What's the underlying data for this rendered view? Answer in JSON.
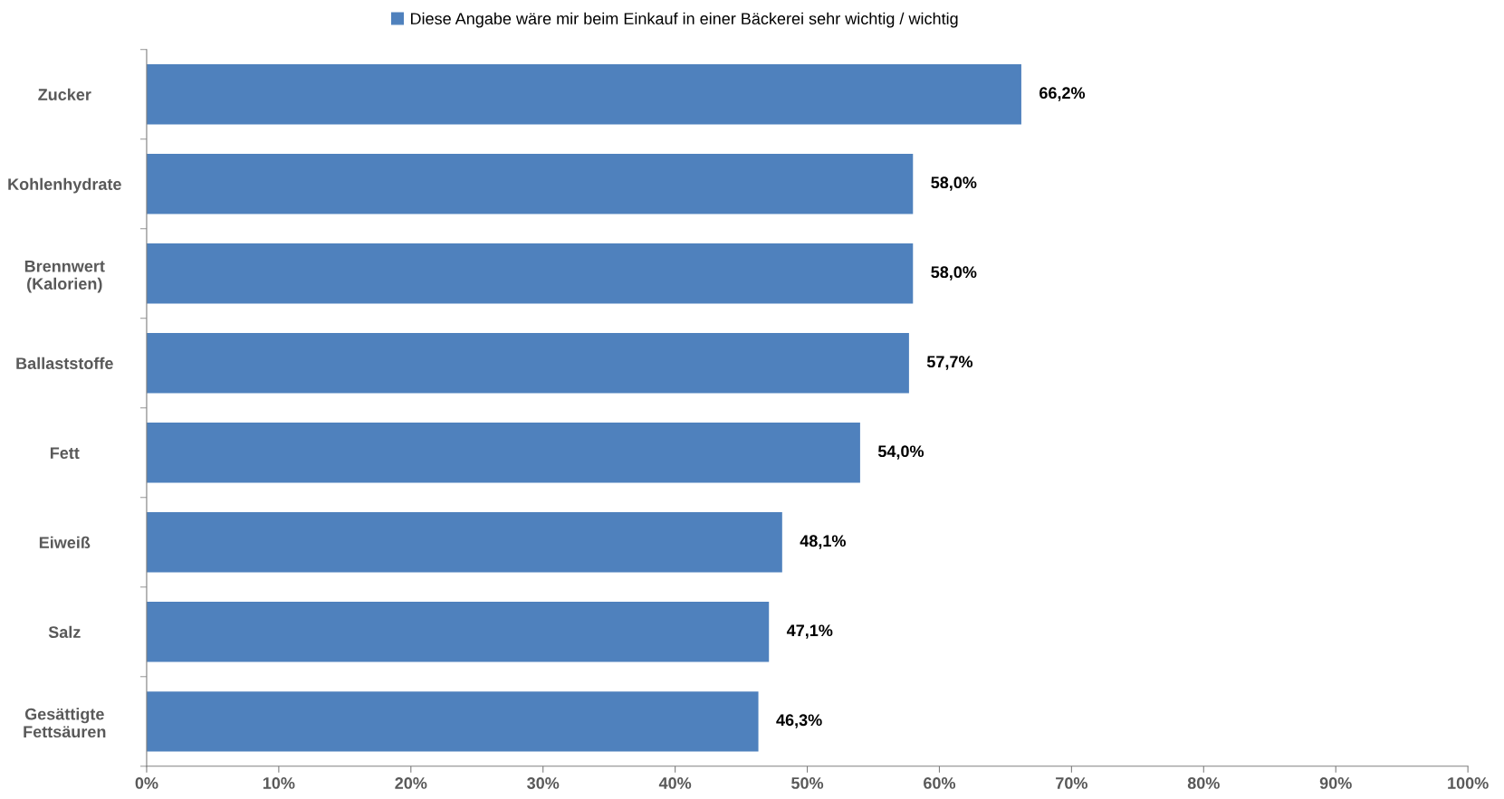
{
  "chart_data": {
    "type": "bar",
    "orientation": "horizontal",
    "categories": [
      "Zucker",
      "Kohlenhydrate",
      "Brennwert\n(Kalorien)",
      "Ballaststoffe",
      "Fett",
      "Eiweiß",
      "Salz",
      "Gesättigte\nFettsäuren"
    ],
    "series": [
      {
        "name": "Diese Angabe wäre mir beim Einkauf in einer Bäckerei sehr wichtig / wichtig",
        "color": "#4f81bd",
        "values": [
          66.2,
          58.0,
          58.0,
          57.7,
          54.0,
          48.1,
          47.1,
          46.3
        ],
        "value_labels": [
          "66,2%",
          "58,0%",
          "58,0%",
          "57,7%",
          "54,0%",
          "48,1%",
          "47,1%",
          "46,3%"
        ]
      }
    ],
    "xlim": [
      0,
      100
    ],
    "xticks": [
      {
        "value": 0,
        "label": "0%"
      },
      {
        "value": 10,
        "label": "10%"
      },
      {
        "value": 20,
        "label": "20%"
      },
      {
        "value": 30,
        "label": "30%"
      },
      {
        "value": 40,
        "label": "40%"
      },
      {
        "value": 50,
        "label": "50%"
      },
      {
        "value": 60,
        "label": "60%"
      },
      {
        "value": 70,
        "label": "70%"
      },
      {
        "value": 80,
        "label": "80%"
      },
      {
        "value": 90,
        "label": "90%"
      },
      {
        "value": 100,
        "label": "100%"
      }
    ],
    "grid": false,
    "legend": "top"
  }
}
